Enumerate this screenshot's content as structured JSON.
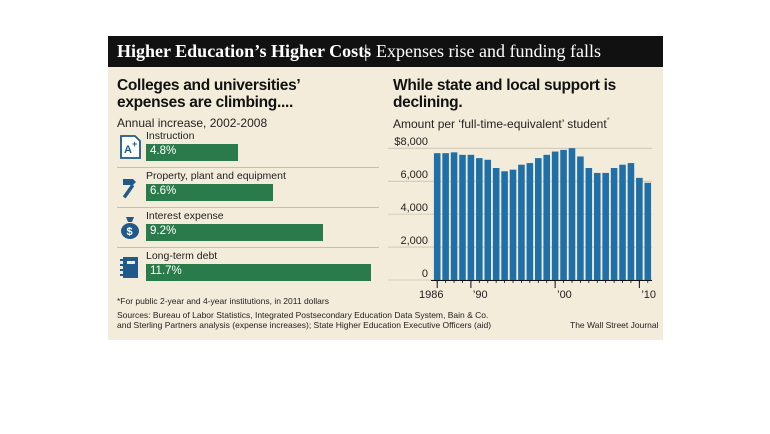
{
  "header": {
    "title_bold": "Higher Education’s Higher Costs",
    "separator": "|",
    "title_rest": "Expenses rise and funding falls"
  },
  "left": {
    "heading": "Colleges and universities’ expenses are climbing....",
    "subheading": "Annual increase, 2002-2008",
    "items": [
      {
        "label": "Instruction",
        "value": "4.8%",
        "pct": 4.8,
        "icon": "report-card-icon"
      },
      {
        "label": "Property, plant and equipment",
        "value": "6.6%",
        "pct": 6.6,
        "icon": "hammer-icon"
      },
      {
        "label": "Interest expense",
        "value": "9.2%",
        "pct": 9.2,
        "icon": "money-bag-icon"
      },
      {
        "label": "Long-term debt",
        "value": "11.7%",
        "pct": 11.7,
        "icon": "notebook-icon"
      }
    ]
  },
  "right": {
    "heading": "While state and local support is declining.",
    "subheading": "Amount per ‘full-time-equivalent’ student",
    "subheading_mark": "*"
  },
  "footnote": "*For public 2-year and 4-year institutions, in 2011 dollars",
  "sources_line1": "Sources: Bureau of Labor Statistics, Integrated Postsecondary Education Data System, Bain & Co.",
  "sources_line2": "and Sterling Partners analysis (expense increases); State Higher Education Executive Officers (aid)",
  "credit": "The Wall Street Journal",
  "colors": {
    "bar_green": "#2b7a4b",
    "bar_blue": "#1f6fa8",
    "panel_bg": "#f3ecda",
    "title_bg": "#111111"
  },
  "chart_data": [
    {
      "type": "bar",
      "categories": [
        "Instruction",
        "Property, plant and equipment",
        "Interest expense",
        "Long-term debt"
      ],
      "values": [
        4.8,
        6.6,
        9.2,
        11.7
      ],
      "title": "Colleges and universities’ expenses are climbing....",
      "subtitle": "Annual increase, 2002-2008",
      "orientation": "horizontal"
    },
    {
      "type": "bar",
      "title": "While state and local support is declining.",
      "subtitle": "Amount per ‘full-time-equivalent’ student*",
      "x": [
        1986,
        1987,
        1988,
        1989,
        1990,
        1991,
        1992,
        1993,
        1994,
        1995,
        1996,
        1997,
        1998,
        1999,
        2000,
        2001,
        2002,
        2003,
        2004,
        2005,
        2006,
        2007,
        2008,
        2009,
        2010,
        2011
      ],
      "values": [
        7700,
        7700,
        7750,
        7600,
        7600,
        7400,
        7300,
        6800,
        6600,
        6700,
        7000,
        7100,
        7400,
        7600,
        7800,
        7900,
        8000,
        7500,
        6800,
        6500,
        6500,
        6800,
        7000,
        7100,
        6200,
        5900
      ],
      "tick_labels_y": [
        "$8,000",
        "6,000",
        "4,000",
        "2,000",
        "0"
      ],
      "tick_values_y": [
        8000,
        6000,
        4000,
        2000,
        0
      ],
      "tick_labels_x": [
        "1986",
        "’90",
        "’00",
        "’10"
      ],
      "tick_years_x": [
        1986,
        1990,
        2000,
        2010
      ],
      "ylim": [
        0,
        8500
      ],
      "grid": true
    }
  ]
}
